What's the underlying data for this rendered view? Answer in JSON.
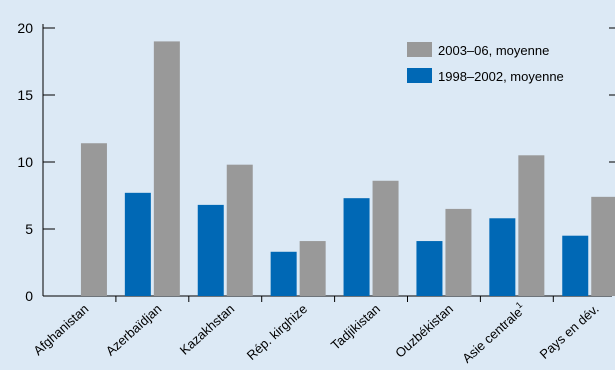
{
  "chart_data": {
    "type": "bar",
    "categories": [
      "Afghanistan",
      "Azerbaïdjan",
      "Kazakhstan",
      "Rép. kirghize",
      "Tadjikistan",
      "Ouzbékistan",
      "Asie centrale",
      "Pays en dév."
    ],
    "category_superscripts": [
      "",
      "",
      "",
      "",
      "",
      "",
      "1",
      ""
    ],
    "series": [
      {
        "name": "1998–2002, moyenne",
        "color": "#0068b5",
        "values": [
          null,
          7.7,
          6.8,
          3.3,
          7.3,
          4.1,
          5.8,
          4.5
        ]
      },
      {
        "name": "2003–06, moyenne",
        "color": "#999999",
        "values": [
          11.4,
          19.0,
          9.8,
          4.1,
          8.6,
          6.5,
          10.5,
          7.4
        ]
      }
    ],
    "legend_order": [
      1,
      0
    ],
    "legend_position": "top-right",
    "yticks": [
      0,
      5,
      10,
      15,
      20
    ],
    "ylim": [
      0,
      20
    ],
    "grid": false,
    "background": "#dce9f5"
  }
}
